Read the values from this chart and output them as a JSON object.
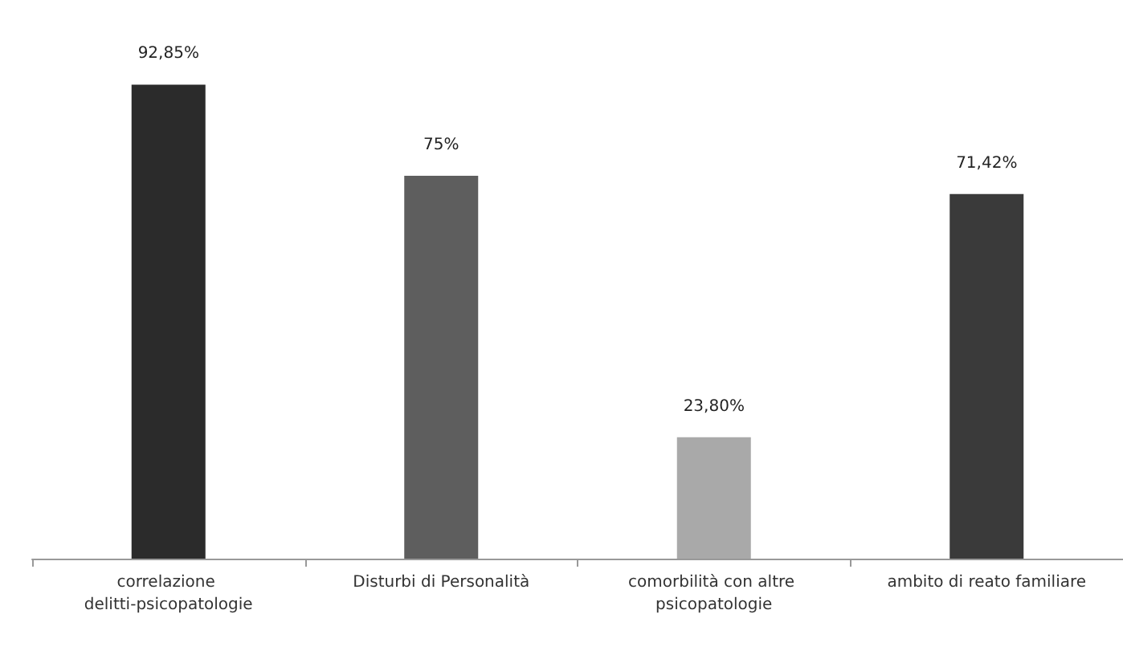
{
  "chart_data": {
    "type": "bar",
    "categories": [
      "correlazione delitti-psicopatologie",
      "Disturbi di Personalità",
      "comorbilità con altre psicopatologie",
      "ambito di reato familiare"
    ],
    "values": [
      92.85,
      75,
      23.8,
      71.42
    ],
    "colors": [
      "#2b2b2b",
      "#5e5e5e",
      "#a9a9a9",
      "#3a3a3a"
    ],
    "value_labels": [
      "92,85%",
      "75%",
      "23,80%",
      "71,42%"
    ]
  }
}
